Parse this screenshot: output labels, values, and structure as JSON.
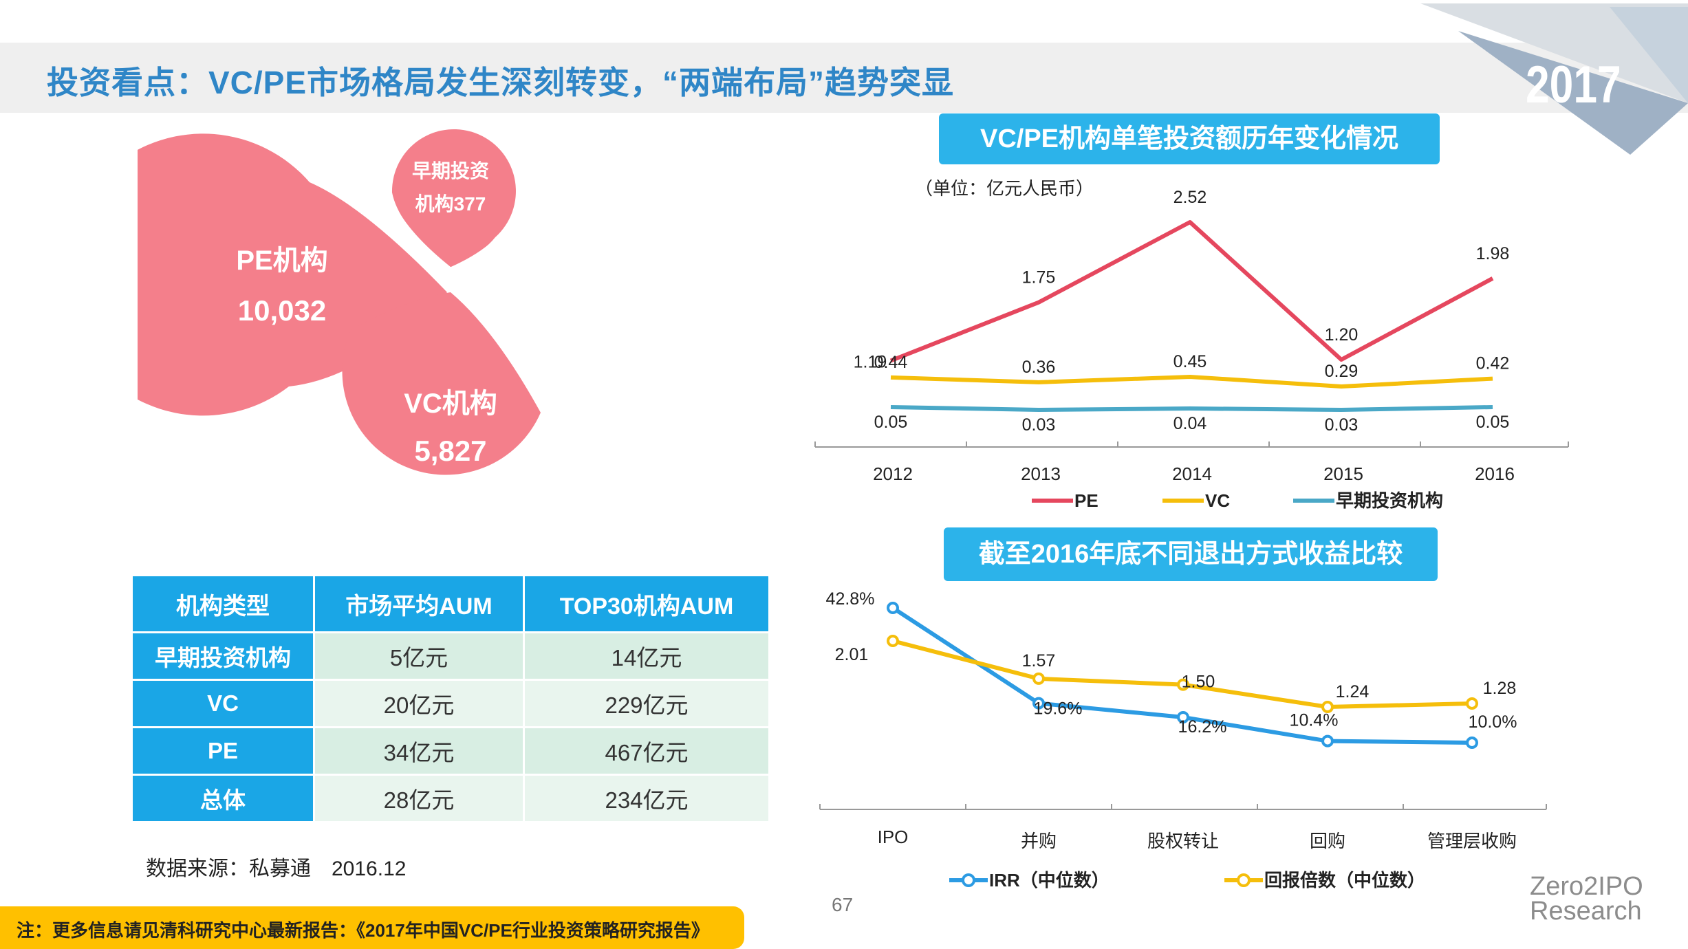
{
  "page": {
    "title": "投资看点：VC/PE市场格局发生深刻转变，“两端布局”趋势突显",
    "year": "2017",
    "page_number": "67",
    "brand_line1": "Zero2IPO",
    "brand_line2": "Research",
    "source": "数据来源：私募通　2016.12",
    "footnote": "注：更多信息请见清科研究中心最新报告：《2017年中国VC/PE行业投资策略研究报告》"
  },
  "colors": {
    "title_blue": "#2f86c7",
    "banner_blue": "#2cb3ea",
    "bubble_pink": "#f47f8b",
    "pe_red": "#e5475e",
    "vc_yellow": "#f5be0b",
    "early_teal": "#4aa8c7",
    "irr_blue": "#2c9be3",
    "footnote_yellow": "#ffc000"
  },
  "bubbles": {
    "pe": {
      "label": "PE机构",
      "value": "10,032"
    },
    "vc": {
      "label": "VC机构",
      "value": "5,827"
    },
    "early": {
      "label1": "早期投资",
      "label2": "机构377"
    }
  },
  "aum_table": {
    "headers": [
      "机构类型",
      "市场平均AUM",
      "TOP30机构AUM"
    ],
    "rows": [
      {
        "type": "早期投资机构",
        "avg": "5亿元",
        "top30": "14亿元"
      },
      {
        "type": "VC",
        "avg": "20亿元",
        "top30": "229亿元"
      },
      {
        "type": "PE",
        "avg": "34亿元",
        "top30": "467亿元"
      },
      {
        "type": "总体",
        "avg": "28亿元",
        "top30": "234亿元"
      }
    ]
  },
  "chart_data": [
    {
      "type": "line",
      "title": "VC/PE机构单笔投资额历年变化情况",
      "unit_note": "（单位：亿元人民币）",
      "categories": [
        "2012",
        "2013",
        "2014",
        "2015",
        "2016"
      ],
      "series": [
        {
          "name": "PE",
          "values": [
            1.19,
            1.75,
            2.52,
            1.2,
            1.98
          ],
          "labels": [
            "1.19",
            "1.75",
            "2.52",
            "1.20",
            "1.98"
          ]
        },
        {
          "name": "VC",
          "values": [
            0.44,
            0.36,
            0.45,
            0.29,
            0.42
          ],
          "labels": [
            "0.44",
            "0.36",
            "0.45",
            "0.29",
            "0.42"
          ]
        },
        {
          "name": "早期投资机构",
          "values": [
            0.05,
            0.03,
            0.04,
            0.03,
            0.05
          ],
          "labels": [
            "0.05",
            "0.03",
            "0.04",
            "0.03",
            "0.05"
          ]
        }
      ],
      "ylim": [
        0,
        2.6
      ]
    },
    {
      "type": "line",
      "title": "截至2016年底不同退出方式收益比较",
      "categories": [
        "IPO",
        "并购",
        "股权转让",
        "回购",
        "管理层收购"
      ],
      "series": [
        {
          "name": "IRR（中位数）",
          "values": [
            42.8,
            19.6,
            16.2,
            10.4,
            10.0
          ],
          "labels": [
            "42.8%",
            "19.6%",
            "16.2%",
            "10.4%",
            "10.0%"
          ]
        },
        {
          "name": "回报倍数（中位数）",
          "values": [
            2.01,
            1.57,
            1.5,
            1.24,
            1.28
          ],
          "labels": [
            "2.01",
            "1.57",
            "1.50",
            "1.24",
            "1.28"
          ]
        }
      ]
    }
  ]
}
